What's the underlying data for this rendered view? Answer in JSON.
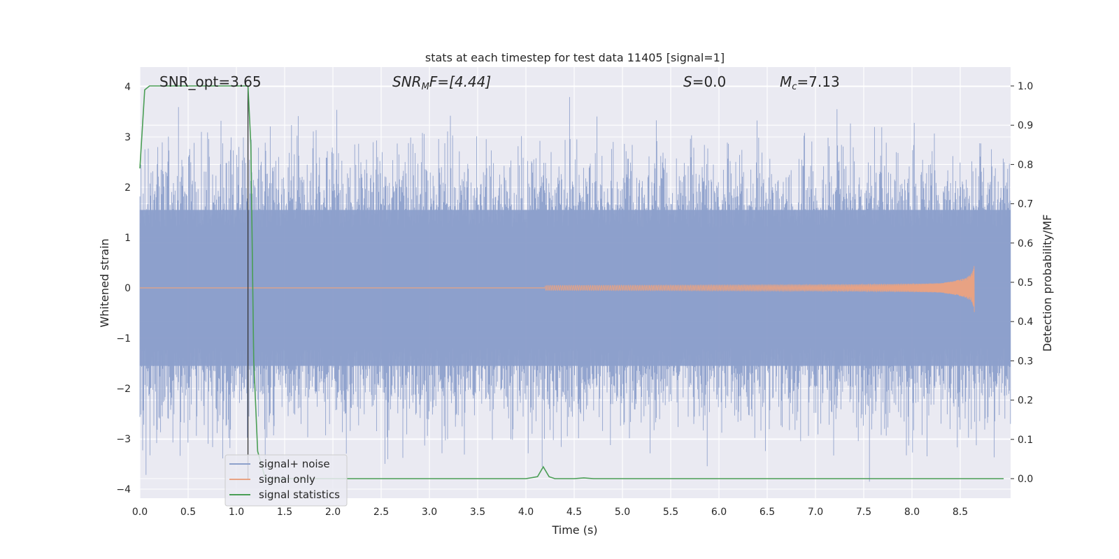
{
  "chart_data": {
    "type": "line",
    "title": "stats at each timestep for test data 11405 [signal=1]",
    "xlabel": "Time (s)",
    "ylabel": "Whitened strain",
    "y2label": "Detection probability/MF",
    "xlim": [
      0.0,
      9.0
    ],
    "ylim": [
      -4.15,
      4.4
    ],
    "y2lim": [
      -0.047,
      1.047
    ],
    "xticks": [
      "0.0",
      "0.5",
      "1.0",
      "1.5",
      "2.0",
      "2.5",
      "3.0",
      "3.5",
      "4.0",
      "4.5",
      "5.0",
      "5.5",
      "6.0",
      "6.5",
      "7.0",
      "7.5",
      "8.0",
      "8.5"
    ],
    "yticks": [
      "4",
      "3",
      "2",
      "1",
      "0",
      "−1",
      "−2",
      "−3",
      "−4"
    ],
    "y2ticks": [
      "1.0",
      "0.9",
      "0.8",
      "0.7",
      "0.6",
      "0.5",
      "0.4",
      "0.3",
      "0.2",
      "0.1",
      "0.0"
    ],
    "grid": true,
    "legend_position": "lower-left",
    "annotations": {
      "snr_opt": "SNR_opt=3.65",
      "snr_mf_main": "SNR",
      "snr_mf_sub": "M",
      "snr_mf_rest": "F=[4.44]",
      "s_main": "S",
      "s_rest": "=0.0",
      "mc_main": "M",
      "mc_sub": "c",
      "mc_rest": "=7.13"
    },
    "vertical_marker_x": 1.12,
    "series": [
      {
        "name": "signal+ noise",
        "axis": "left",
        "color": "#8da0cb",
        "description_values": "whitened noise envelope",
        "t_start": 0.0,
        "t_end": 9.0,
        "approx_std": 1.0
      },
      {
        "name": "signal only",
        "axis": "left",
        "color": "#e8a283",
        "chirp_start": 4.2,
        "chirp_end": 8.65,
        "peak_amplitude": 0.55
      },
      {
        "name": "signal statistics",
        "axis": "right",
        "color": "#4a9e55",
        "x": [
          0.0,
          0.05,
          0.1,
          0.15,
          0.2,
          0.5,
          0.8,
          1.0,
          1.1,
          1.12,
          1.15,
          1.18,
          1.22,
          1.3,
          1.5,
          2.0,
          3.0,
          4.0,
          4.12,
          4.18,
          4.24,
          4.3,
          4.5,
          4.6,
          4.7,
          5.0,
          6.0,
          7.0,
          8.0,
          8.5,
          8.95
        ],
        "y": [
          0.79,
          0.99,
          1.0,
          1.0,
          1.0,
          1.0,
          1.0,
          1.0,
          1.0,
          1.0,
          0.85,
          0.3,
          0.07,
          0.0,
          0.0,
          0.0,
          0.0,
          0.0,
          0.005,
          0.03,
          0.005,
          0.0,
          0.0,
          0.002,
          0.0,
          0.0,
          0.0,
          0.0,
          0.0,
          0.0,
          0.0
        ]
      }
    ],
    "legend": [
      "signal+ noise",
      "signal only",
      "signal statistics"
    ]
  }
}
